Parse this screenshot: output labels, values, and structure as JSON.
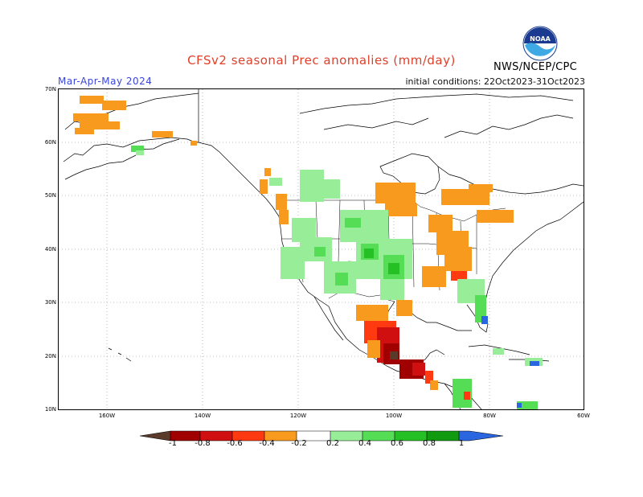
{
  "header": {
    "title": "CFSv2 seasonal Prec anomalies (mm/day)",
    "season": "Mar-Apr-May 2024",
    "initial_conditions": "initial conditions: 22Oct2023-31Oct2023",
    "agency": "NWS/NCEP/CPC",
    "logo_text": "NOAA"
  },
  "axes": {
    "latitude_labels": [
      "70N",
      "60N",
      "50N",
      "40N",
      "30N",
      "20N",
      "10N"
    ],
    "longitude_labels": [
      "160W",
      "140W",
      "120W",
      "100W",
      "80W",
      "60W"
    ]
  },
  "legend": {
    "labels": [
      "-1",
      "-0.8",
      "-0.6",
      "-0.4",
      "-0.2",
      "0.2",
      "0.4",
      "0.6",
      "0.8",
      "1"
    ],
    "colors": {
      "lt_m1": "#5a3a2a",
      "m1_m08": "#a00000",
      "m08_m06": "#d01010",
      "m06_m04": "#ff3a10",
      "m04_m02": "#f79a1e",
      "near_zero": "#ffffff",
      "p02_p04": "#98ee98",
      "p04_p06": "#55dd55",
      "p06_p08": "#24c024",
      "p08_p1": "#0f9a0f",
      "gt_p1": "#2a66e0"
    }
  }
}
